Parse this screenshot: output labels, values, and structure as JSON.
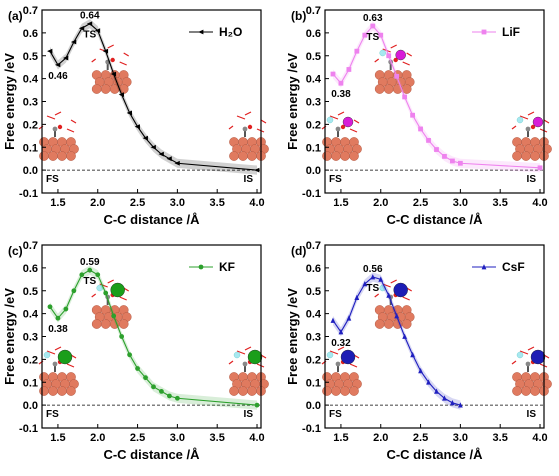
{
  "chart_data": [
    {
      "type": "line",
      "panel_label": "(a)",
      "xlabel": "C-C distance /Å",
      "ylabel": "Free energy /eV",
      "xlim": [
        1.3,
        4.05
      ],
      "ylim": [
        -0.1,
        0.7
      ],
      "xticks": [
        "1.5",
        "2.0",
        "2.5",
        "3.0",
        "3.5",
        "4.0"
      ],
      "yticks": [
        "-0.1",
        "0.0",
        "0.1",
        "0.2",
        "0.3",
        "0.4",
        "0.5",
        "0.6",
        "0.7"
      ],
      "legend_position": "top-right",
      "series": [
        {
          "name": "H₂O",
          "color": "#000000",
          "marker": "left-triangle",
          "x": [
            1.4,
            1.5,
            1.6,
            1.7,
            1.8,
            1.9,
            2.0,
            2.1,
            2.2,
            2.3,
            2.4,
            2.5,
            2.6,
            2.7,
            2.8,
            2.9,
            3.0,
            4.0
          ],
          "y": [
            0.52,
            0.46,
            0.49,
            0.56,
            0.62,
            0.64,
            0.61,
            0.52,
            0.42,
            0.33,
            0.25,
            0.19,
            0.14,
            0.1,
            0.07,
            0.05,
            0.03,
            0.0
          ]
        }
      ],
      "annotations": [
        {
          "text": "0.64",
          "x": 1.9,
          "y": 0.64
        },
        {
          "text": "TS",
          "x": 1.9,
          "y": 0.64
        },
        {
          "text": "0.46",
          "x": 1.5,
          "y": 0.46
        },
        {
          "text": "FS",
          "x": 1.45,
          "y": 0.0
        },
        {
          "text": "IS",
          "x": 3.95,
          "y": 0.0
        }
      ]
    },
    {
      "type": "line",
      "panel_label": "(b)",
      "xlabel": "C-C distance /Å",
      "ylabel": "Free energy /eV",
      "xlim": [
        1.3,
        4.05
      ],
      "ylim": [
        -0.1,
        0.7
      ],
      "xticks": [
        "1.5",
        "2.0",
        "2.5",
        "3.0",
        "3.5",
        "4.0"
      ],
      "yticks": [
        "-0.1",
        "0.0",
        "0.1",
        "0.2",
        "0.3",
        "0.4",
        "0.5",
        "0.6",
        "0.7"
      ],
      "legend_position": "top-right",
      "series": [
        {
          "name": "LiF",
          "color": "#ee82ee",
          "marker": "square",
          "x": [
            1.4,
            1.5,
            1.6,
            1.7,
            1.8,
            1.9,
            2.0,
            2.1,
            2.2,
            2.3,
            2.4,
            2.5,
            2.6,
            2.7,
            2.8,
            2.9,
            3.0,
            4.0
          ],
          "y": [
            0.42,
            0.38,
            0.44,
            0.52,
            0.59,
            0.63,
            0.59,
            0.5,
            0.41,
            0.32,
            0.24,
            0.18,
            0.13,
            0.09,
            0.06,
            0.04,
            0.03,
            0.01
          ]
        }
      ],
      "annotations": [
        {
          "text": "0.63",
          "x": 1.9,
          "y": 0.63
        },
        {
          "text": "TS",
          "x": 1.9,
          "y": 0.63
        },
        {
          "text": "0.38",
          "x": 1.5,
          "y": 0.38
        },
        {
          "text": "FS",
          "x": 1.45,
          "y": 0.0
        },
        {
          "text": "IS",
          "x": 3.95,
          "y": 0.0
        }
      ]
    },
    {
      "type": "line",
      "panel_label": "(c)",
      "xlabel": "C-C distance /Å",
      "ylabel": "Free energy /eV",
      "xlim": [
        1.3,
        4.05
      ],
      "ylim": [
        -0.1,
        0.7
      ],
      "xticks": [
        "1.5",
        "2.0",
        "2.5",
        "3.0",
        "3.5",
        "4.0"
      ],
      "yticks": [
        "-0.1",
        "0.0",
        "0.1",
        "0.2",
        "0.3",
        "0.4",
        "0.5",
        "0.6",
        "0.7"
      ],
      "legend_position": "top-right",
      "series": [
        {
          "name": "KF",
          "color": "#2ca02c",
          "marker": "circle",
          "x": [
            1.4,
            1.5,
            1.6,
            1.7,
            1.8,
            1.9,
            2.0,
            2.1,
            2.2,
            2.3,
            2.4,
            2.5,
            2.6,
            2.7,
            2.8,
            2.9,
            3.0,
            4.0
          ],
          "y": [
            0.43,
            0.38,
            0.42,
            0.5,
            0.57,
            0.59,
            0.57,
            0.49,
            0.39,
            0.3,
            0.22,
            0.16,
            0.12,
            0.08,
            0.06,
            0.04,
            0.03,
            0.0
          ]
        }
      ],
      "annotations": [
        {
          "text": "0.59",
          "x": 1.9,
          "y": 0.59
        },
        {
          "text": "TS",
          "x": 1.9,
          "y": 0.59
        },
        {
          "text": "0.38",
          "x": 1.5,
          "y": 0.38
        },
        {
          "text": "FS",
          "x": 1.45,
          "y": 0.0
        },
        {
          "text": "IS",
          "x": 3.95,
          "y": 0.0
        }
      ]
    },
    {
      "type": "line",
      "panel_label": "(d)",
      "xlabel": "C-C distance /Å",
      "ylabel": "Free energy /eV",
      "xlim": [
        1.3,
        4.05
      ],
      "ylim": [
        -0.1,
        0.7
      ],
      "xticks": [
        "1.5",
        "2.0",
        "2.5",
        "3.0",
        "3.5",
        "4.0"
      ],
      "yticks": [
        "-0.1",
        "0.0",
        "0.1",
        "0.2",
        "0.3",
        "0.4",
        "0.5",
        "0.6",
        "0.7"
      ],
      "legend_position": "top-right",
      "series": [
        {
          "name": "CsF",
          "color": "#1f1fbf",
          "marker": "triangle",
          "x": [
            1.4,
            1.5,
            1.6,
            1.7,
            1.8,
            1.9,
            2.0,
            2.1,
            2.2,
            2.3,
            2.4,
            2.5,
            2.6,
            2.7,
            2.8,
            2.9,
            3.0
          ],
          "y": [
            0.37,
            0.32,
            0.38,
            0.47,
            0.53,
            0.56,
            0.55,
            0.48,
            0.39,
            0.3,
            0.22,
            0.15,
            0.1,
            0.06,
            0.03,
            0.01,
            0.0
          ]
        }
      ],
      "annotations": [
        {
          "text": "0.56",
          "x": 1.9,
          "y": 0.56
        },
        {
          "text": "TS",
          "x": 1.9,
          "y": 0.56
        },
        {
          "text": "0.32",
          "x": 1.5,
          "y": 0.32
        },
        {
          "text": "FS",
          "x": 1.45,
          "y": 0.0
        },
        {
          "text": "IS",
          "x": 3.95,
          "y": 0.0
        }
      ]
    }
  ]
}
